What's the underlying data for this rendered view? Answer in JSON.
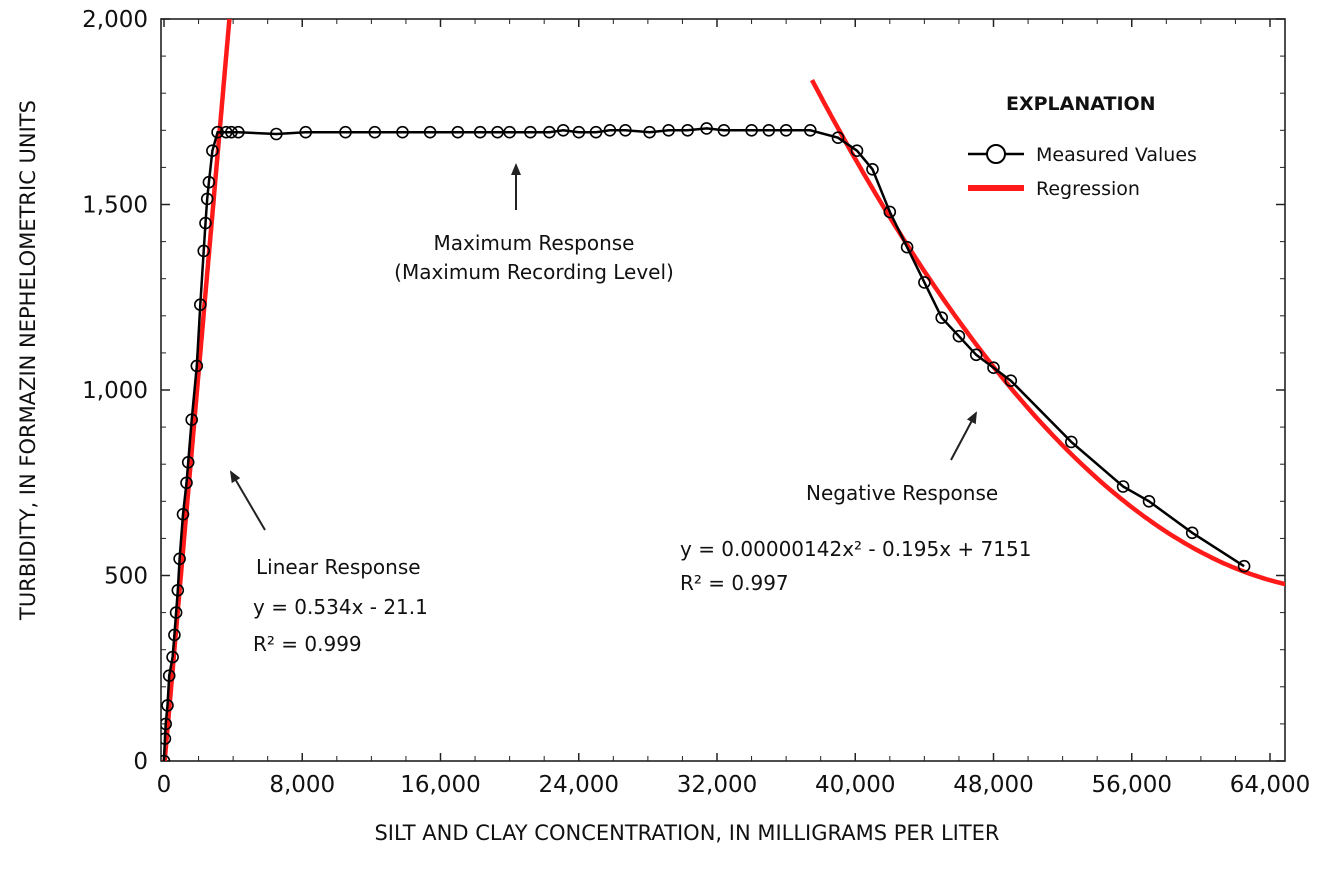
{
  "chart_data": {
    "type": "scatter",
    "xlabel": "SILT AND CLAY CONCENTRATION, IN MILLIGRAMS PER LITER",
    "ylabel": "TURBIDITY, IN FORMAZIN NEPHELOMETRIC UNITS",
    "xlim": [
      0,
      65000
    ],
    "ylim": [
      0,
      2000
    ],
    "x_ticks": [
      0,
      8000,
      16000,
      24000,
      32000,
      40000,
      48000,
      56000,
      64000
    ],
    "x_tick_labels": [
      "0",
      "8,000",
      "16,000",
      "24,000",
      "32,000",
      "40,000",
      "48,000",
      "56,000",
      "64,000"
    ],
    "y_ticks": [
      0,
      500,
      1000,
      1500,
      2000
    ],
    "y_tick_labels": [
      "0",
      "500",
      "1,000",
      "1,500",
      "2,000"
    ],
    "grid": false,
    "legend": {
      "title": "EXPLANATION",
      "placement": "top-right",
      "entries": [
        {
          "label": "Measured Values",
          "style": "line-circle",
          "color": "#000000"
        },
        {
          "label": "Regression",
          "style": "line",
          "color": "#ff1a1a"
        }
      ]
    },
    "series": [
      {
        "name": "Measured Values",
        "color": "#000000",
        "points": [
          [
            0,
            0
          ],
          [
            50,
            60
          ],
          [
            100,
            100
          ],
          [
            200,
            150
          ],
          [
            300,
            230
          ],
          [
            500,
            280
          ],
          [
            600,
            340
          ],
          [
            700,
            400
          ],
          [
            800,
            460
          ],
          [
            900,
            545
          ],
          [
            1100,
            665
          ],
          [
            1300,
            750
          ],
          [
            1400,
            805
          ],
          [
            1600,
            920
          ],
          [
            1900,
            1065
          ],
          [
            2100,
            1230
          ],
          [
            2300,
            1375
          ],
          [
            2400,
            1450
          ],
          [
            2500,
            1515
          ],
          [
            2600,
            1560
          ],
          [
            2800,
            1645
          ],
          [
            3100,
            1695
          ],
          [
            3600,
            1695
          ],
          [
            3900,
            1695
          ],
          [
            4300,
            1695
          ],
          [
            6500,
            1690
          ],
          [
            8200,
            1695
          ],
          [
            10500,
            1695
          ],
          [
            12200,
            1695
          ],
          [
            13800,
            1695
          ],
          [
            15400,
            1695
          ],
          [
            17000,
            1695
          ],
          [
            18300,
            1695
          ],
          [
            19300,
            1695
          ],
          [
            20000,
            1695
          ],
          [
            21200,
            1695
          ],
          [
            22300,
            1695
          ],
          [
            23100,
            1700
          ],
          [
            24000,
            1695
          ],
          [
            25000,
            1695
          ],
          [
            25800,
            1700
          ],
          [
            26700,
            1700
          ],
          [
            28100,
            1695
          ],
          [
            29200,
            1700
          ],
          [
            30300,
            1700
          ],
          [
            31400,
            1705
          ],
          [
            32400,
            1700
          ],
          [
            34000,
            1700
          ],
          [
            35000,
            1700
          ],
          [
            36000,
            1700
          ],
          [
            37400,
            1700
          ],
          [
            39000,
            1680
          ],
          [
            40100,
            1645
          ],
          [
            41000,
            1595
          ],
          [
            42000,
            1480
          ],
          [
            43000,
            1385
          ],
          [
            44000,
            1290
          ],
          [
            45000,
            1195
          ],
          [
            46000,
            1145
          ],
          [
            47000,
            1095
          ],
          [
            48000,
            1060
          ],
          [
            49000,
            1025
          ],
          [
            52500,
            860
          ],
          [
            55500,
            740
          ],
          [
            57000,
            700
          ],
          [
            59500,
            615
          ],
          [
            62500,
            525
          ]
        ]
      },
      {
        "name": "Regression",
        "color": "#ff1a1a",
        "segments": [
          {
            "equation": "y = 0.534x - 21.1",
            "slope": 0.534,
            "intercept": -21.1,
            "x_range": [
              0,
              3800
            ]
          },
          {
            "equation": "y = 0.00000142x² - 0.195x + 7151",
            "a": 1.42e-06,
            "b": -0.195,
            "c": 7151,
            "x_range": [
              37500,
              65000
            ]
          }
        ]
      }
    ],
    "annotations": [
      {
        "id": "linear",
        "lines": [
          "Linear Response",
          "y = 0.534x - 21.1",
          "R² = 0.999"
        ]
      },
      {
        "id": "maximum",
        "lines": [
          "Maximum Response",
          "(Maximum Recording Level)"
        ]
      },
      {
        "id": "negative",
        "lines": [
          "Negative Response",
          "y = 0.00000142x² - 0.195x + 7151",
          "R² = 0.997"
        ]
      }
    ]
  }
}
